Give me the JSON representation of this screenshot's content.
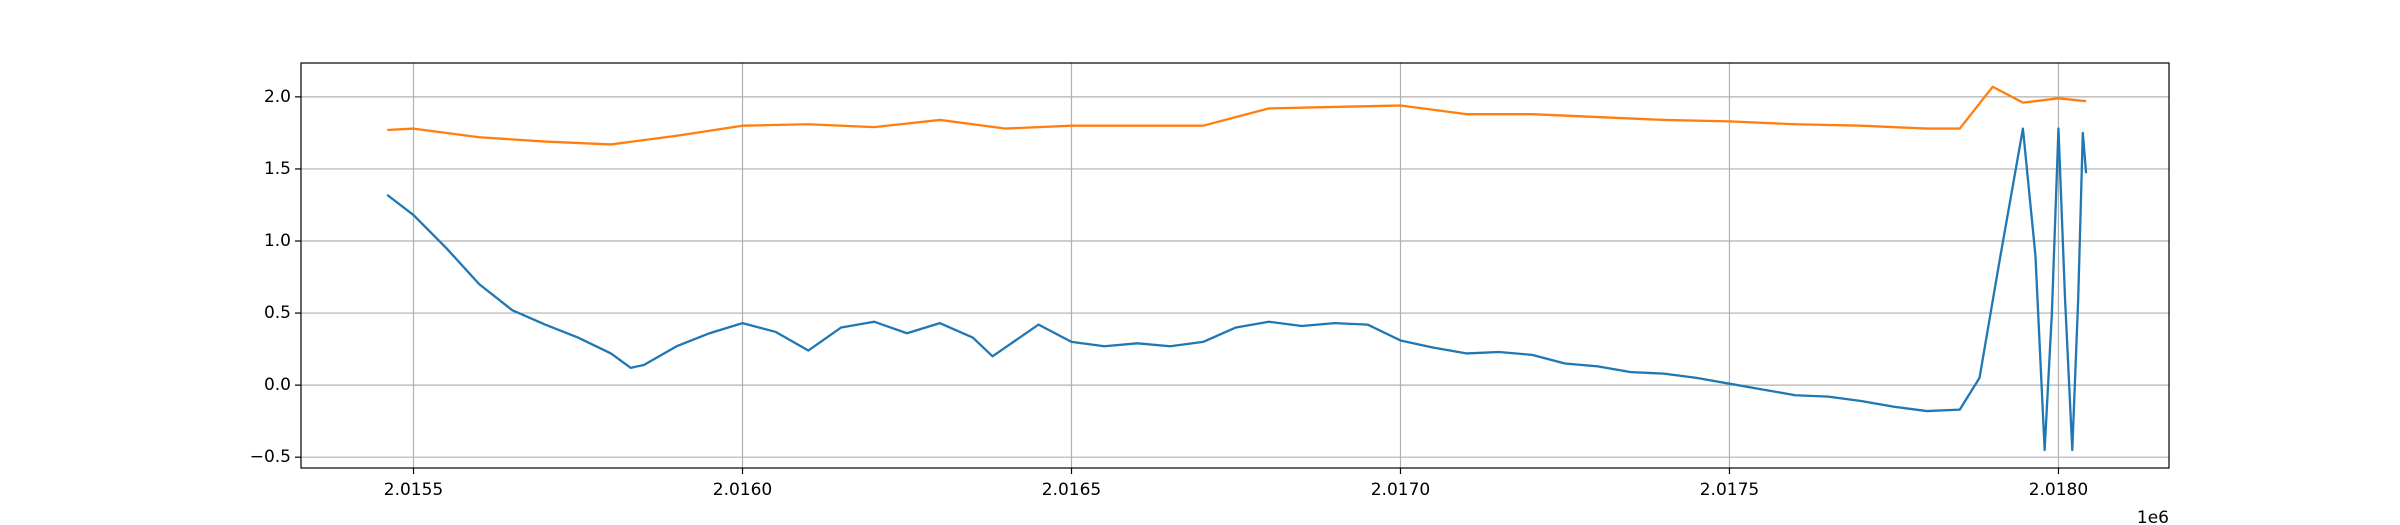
{
  "chart_data": {
    "type": "line",
    "x_offset_label": "1e6",
    "xlim": [
      2015329,
      2018168
    ],
    "ylim": [
      -0.575,
      2.235
    ],
    "xticks": [
      {
        "value": 2015500,
        "label": "2.0155"
      },
      {
        "value": 2016000,
        "label": "2.0160"
      },
      {
        "value": 2016500,
        "label": "2.0165"
      },
      {
        "value": 2017000,
        "label": "2.0170"
      },
      {
        "value": 2017500,
        "label": "2.0175"
      },
      {
        "value": 2018000,
        "label": "2.0180"
      }
    ],
    "yticks": [
      {
        "value": -0.5,
        "label": "−0.5"
      },
      {
        "value": 0,
        "label": "0.0"
      },
      0.5,
      {
        "value": 1,
        "label": "1.0"
      },
      1.5,
      {
        "value": 2,
        "label": "2.0"
      }
    ],
    "grid": true,
    "series": [
      {
        "color": "#1f77b4",
        "x": [
          2015460,
          2015500,
          2015550,
          2015600,
          2015650,
          2015700,
          2015750,
          2015800,
          2015830,
          2015850,
          2015900,
          2015950,
          2016000,
          2016050,
          2016100,
          2016150,
          2016200,
          2016250,
          2016300,
          2016350,
          2016380,
          2016450,
          2016500,
          2016550,
          2016600,
          2016650,
          2016700,
          2016750,
          2016800,
          2016850,
          2016900,
          2016950,
          2017000,
          2017050,
          2017100,
          2017150,
          2017200,
          2017250,
          2017300,
          2017350,
          2017400,
          2017450,
          2017500,
          2017550,
          2017600,
          2017650,
          2017700,
          2017750,
          2017800,
          2017850,
          2017880,
          2017910,
          2017946,
          2017965,
          2017979,
          2017990,
          2018000,
          2018010,
          2018021,
          2018030,
          2018037,
          2018042
        ],
        "values": [
          1.32,
          1.18,
          0.95,
          0.7,
          0.52,
          0.42,
          0.33,
          0.22,
          0.12,
          0.14,
          0.27,
          0.36,
          0.43,
          0.37,
          0.24,
          0.4,
          0.44,
          0.36,
          0.43,
          0.33,
          0.2,
          0.42,
          0.3,
          0.27,
          0.29,
          0.27,
          0.3,
          0.4,
          0.44,
          0.41,
          0.43,
          0.42,
          0.31,
          0.26,
          0.22,
          0.23,
          0.21,
          0.15,
          0.13,
          0.09,
          0.08,
          0.05,
          0.01,
          -0.03,
          -0.07,
          -0.08,
          -0.11,
          -0.15,
          -0.18,
          -0.17,
          0.05,
          0.85,
          1.78,
          0.9,
          -0.45,
          0.5,
          1.78,
          0.6,
          -0.45,
          0.6,
          1.75,
          1.47
        ]
      },
      {
        "color": "#ff7f0e",
        "x": [
          2015460,
          2015500,
          2015600,
          2015700,
          2015800,
          2015900,
          2016000,
          2016100,
          2016200,
          2016300,
          2016400,
          2016500,
          2016600,
          2016700,
          2016800,
          2016900,
          2017000,
          2017100,
          2017200,
          2017300,
          2017400,
          2017500,
          2017600,
          2017700,
          2017800,
          2017850,
          2017900,
          2017946,
          2018000,
          2018042
        ],
        "values": [
          1.77,
          1.78,
          1.72,
          1.69,
          1.67,
          1.73,
          1.8,
          1.81,
          1.79,
          1.84,
          1.78,
          1.8,
          1.8,
          1.8,
          1.92,
          1.93,
          1.94,
          1.88,
          1.88,
          1.86,
          1.84,
          1.83,
          1.81,
          1.8,
          1.78,
          1.78,
          2.07,
          1.96,
          1.99,
          1.97
        ]
      }
    ]
  }
}
